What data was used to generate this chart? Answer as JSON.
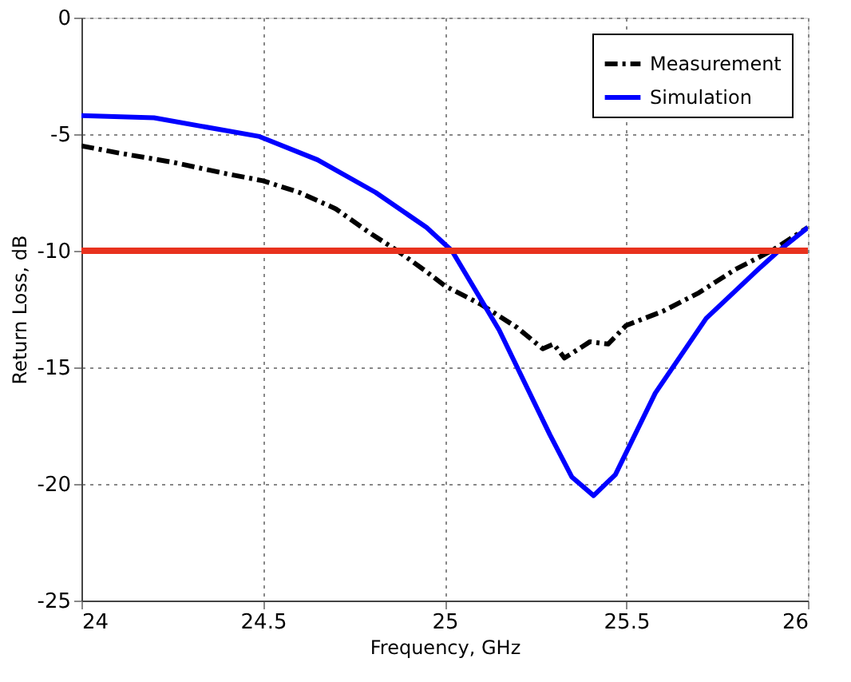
{
  "chart_data": {
    "type": "line",
    "xlabel": "Frequency, GHz",
    "ylabel": "Return Loss, dB",
    "xlim": [
      24,
      26
    ],
    "xticks": [
      24,
      24.5,
      25,
      25.5,
      26
    ],
    "ylim": [
      -25,
      0
    ],
    "yticks": [
      -25,
      -20,
      -15,
      -10,
      -5,
      0
    ],
    "grid": true,
    "legend": "top right",
    "series": [
      {
        "name": "Measurement",
        "color": "#000000",
        "line_style": "dashed",
        "x": [
          24,
          24.1,
          24.25,
          24.4,
          24.5,
          24.6,
          24.7,
          24.8,
          24.87,
          24.95,
          25.0,
          25.1,
          25.2,
          25.27,
          25.3,
          25.33,
          25.4,
          25.45,
          25.5,
          25.6,
          25.7,
          25.8,
          25.9,
          26
        ],
        "values": [
          -5.5,
          -5.8,
          -6.2,
          -6.7,
          -7.0,
          -7.5,
          -8.2,
          -9.3,
          -10,
          -10.9,
          -11.5,
          -12.3,
          -13.3,
          -14.2,
          -14.0,
          -14.6,
          -13.9,
          -14.0,
          -13.2,
          -12.6,
          -11.8,
          -10.8,
          -10,
          -9.0
        ]
      },
      {
        "name": "Simulation",
        "color": "#0000ff",
        "line_style": "solid",
        "x": [
          24,
          24.2,
          24.49,
          24.65,
          24.81,
          24.95,
          25.02,
          25.15,
          25.29,
          25.35,
          25.41,
          25.47,
          25.58,
          25.72,
          25.87,
          25.92,
          26
        ],
        "values": [
          -4.2,
          -4.3,
          -5.1,
          -6.1,
          -7.5,
          -9.0,
          -10,
          -13.4,
          -17.9,
          -19.7,
          -20.5,
          -19.6,
          -16.1,
          -12.9,
          -10.7,
          -10,
          -9.0
        ]
      }
    ],
    "ref_lines": [
      {
        "axis": "y",
        "value": -10,
        "color": "#e8321e",
        "line_style": "solid"
      }
    ]
  }
}
